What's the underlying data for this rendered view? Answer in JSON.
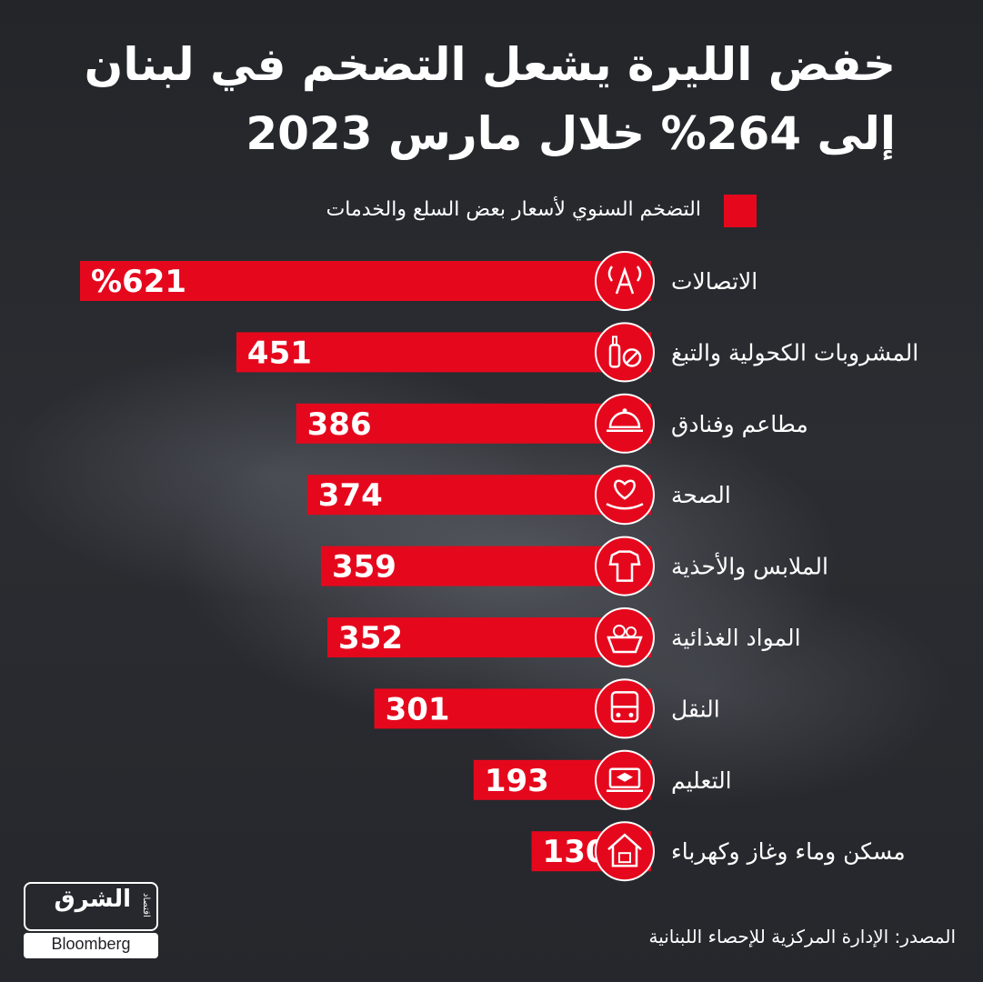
{
  "title_line1": "خفض الليرة يشعل التضخم في لبنان",
  "title_line2": "إلى 264% خلال مارس 2023",
  "legend": {
    "label": "التضخم السنوي لأسعار بعض السلع والخدمات",
    "color": "#e5081d"
  },
  "source": "المصدر: الإدارة المركزية للإحصاء اللبنانية",
  "logo": {
    "arabic": "الشرق",
    "sub": "اقتصاد",
    "brand": "Bloomberg",
    "with": "مع"
  },
  "colors": {
    "bar": "#e5081d",
    "background": "#24262b",
    "text": "#ffffff"
  },
  "chart_data": {
    "type": "bar",
    "orientation": "horizontal",
    "unit": "%",
    "categories": [
      "الاتصالات",
      "المشروبات الكحولية والتبغ",
      "مطاعم وفنادق",
      "الصحة",
      "الملابس والأحذية",
      "المواد الغذائية",
      "النقل",
      "التعليم",
      "مسكن وماء وغاز وكهرباء"
    ],
    "values": [
      621,
      451,
      386,
      374,
      359,
      352,
      301,
      193,
      130
    ],
    "value_labels": [
      "%621",
      "451",
      "386",
      "374",
      "359",
      "352",
      "301",
      "193",
      "130"
    ],
    "icons": [
      "telecom-tower-icon",
      "bottle-no-smoking-icon",
      "serving-cloche-icon",
      "heart-hand-icon",
      "clothes-icon",
      "food-basket-icon",
      "bus-icon",
      "graduation-laptop-icon",
      "house-icon"
    ],
    "series": [
      {
        "values": [
          621,
          451,
          386,
          374,
          359,
          352,
          301,
          193,
          130
        ]
      }
    ]
  }
}
